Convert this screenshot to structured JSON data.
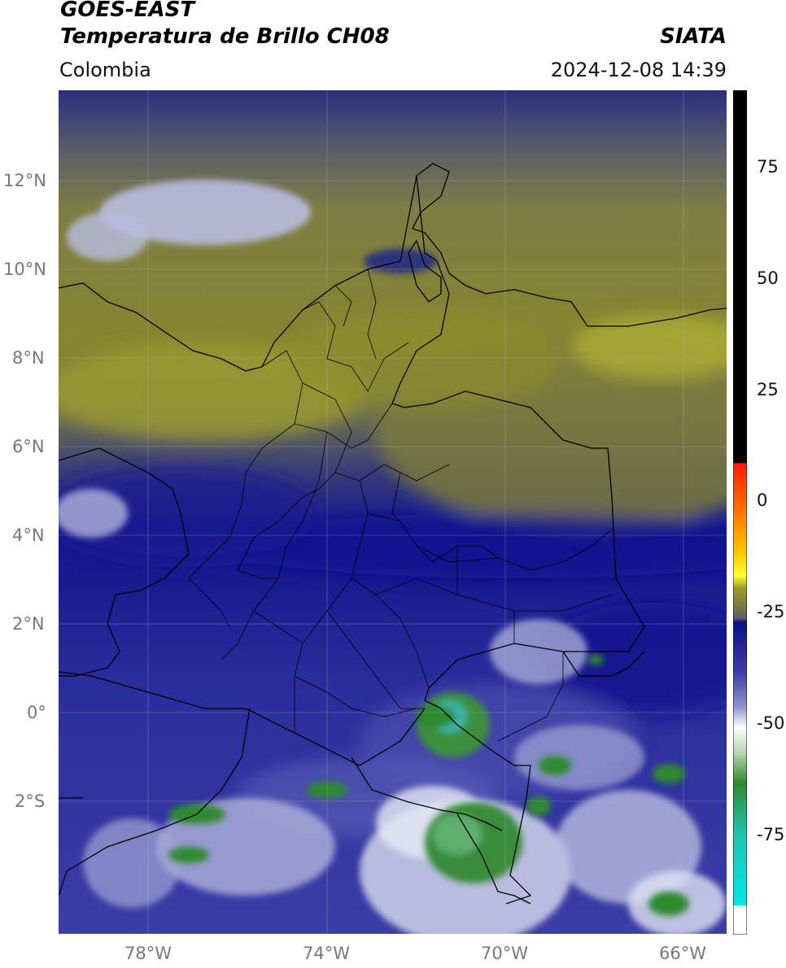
{
  "header": {
    "line1": "GOES-EAST",
    "line2": "Temperatura de Brillo CH08",
    "org": "SIATA",
    "region": "Colombia",
    "datetime": "2024-12-08 14:39"
  },
  "map": {
    "lat_labels": [
      "12°N",
      "10°N",
      "8°N",
      "6°N",
      "4°N",
      "2°N",
      "0°",
      "2°S"
    ],
    "lon_labels": [
      "78°W",
      "74°W",
      "70°W",
      "66°W"
    ],
    "lat_values": [
      12,
      10,
      8,
      6,
      4,
      2,
      0,
      -2
    ],
    "lon_values": [
      -78,
      -74,
      -70,
      -66
    ],
    "extent": {
      "lon_min": -80.3,
      "lon_max": -65.3,
      "lat_min": -5.3,
      "lat_max": 14.0
    }
  },
  "colorbar": {
    "tick_labels": [
      "75",
      "50",
      "25",
      "0",
      "-25",
      "-50",
      "-75"
    ],
    "tick_values": [
      75,
      50,
      25,
      0,
      -25,
      -50,
      -75
    ],
    "range": [
      -97,
      90
    ],
    "colors": {
      "black": "#000000",
      "red": "#ff1a00",
      "orange": "#ff9900",
      "yellow": "#ffff33",
      "olive": "#9a9a2e",
      "gray": "#5f6060",
      "navy": "#0b0f8a",
      "blue": "#3d3fa5",
      "lavender": "#b9bde0",
      "white": "#ffffff",
      "green": "#2e8a2e",
      "teal": "#22c6b4",
      "cyan": "#00e5e5"
    }
  }
}
